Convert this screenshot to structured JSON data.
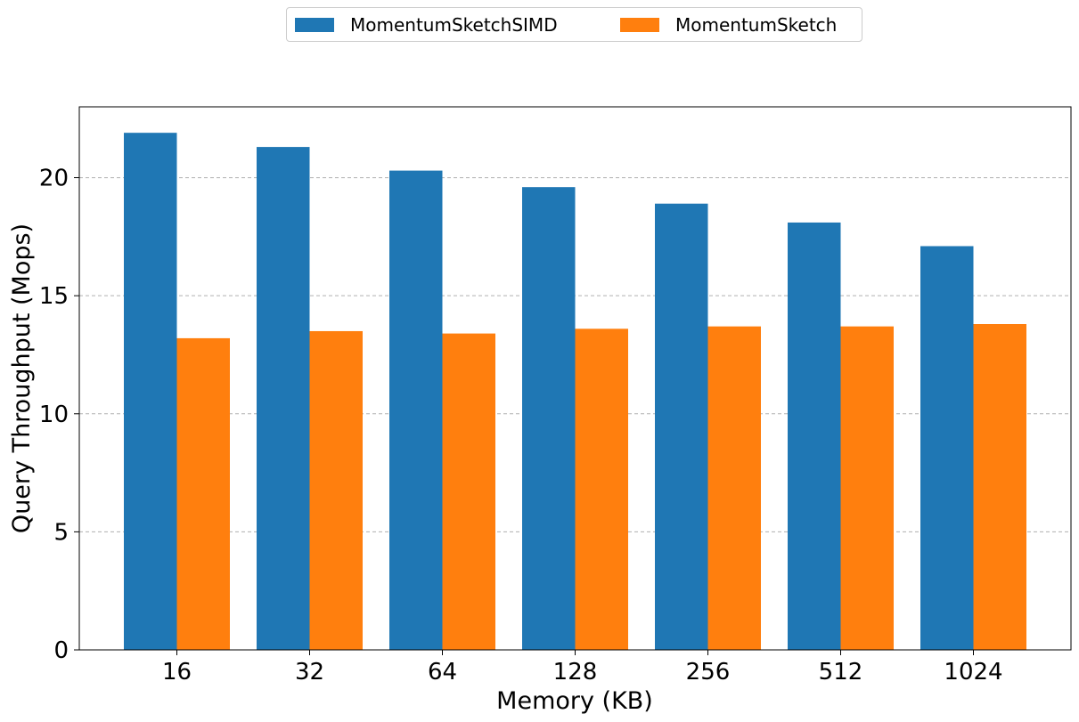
{
  "chart_data": {
    "type": "bar",
    "categories": [
      "16",
      "32",
      "64",
      "128",
      "256",
      "512",
      "1024"
    ],
    "series": [
      {
        "name": "MomentumSketchSIMD",
        "color": "#1f77b4",
        "values": [
          21.9,
          21.3,
          20.3,
          19.6,
          18.9,
          18.1,
          17.1
        ]
      },
      {
        "name": "MomentumSketch",
        "color": "#ff7f0e",
        "values": [
          13.2,
          13.5,
          13.4,
          13.6,
          13.7,
          13.7,
          13.8
        ]
      }
    ],
    "xlabel": "Memory (KB)",
    "ylabel": "Query Throughput (Mops)",
    "ylim": [
      0,
      23
    ],
    "yticks": [
      0,
      5,
      10,
      15,
      20
    ],
    "grid": "y-dashed",
    "legend_placement": "top-center"
  }
}
